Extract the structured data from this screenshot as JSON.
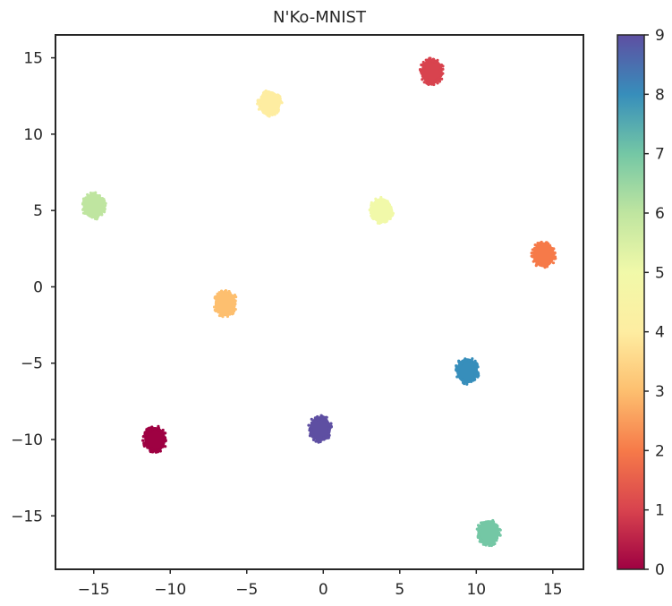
{
  "chart_data": {
    "type": "scatter",
    "title": "N'Ko-MNIST",
    "xlabel": "",
    "ylabel": "",
    "xlim": [
      -17.5,
      17
    ],
    "ylim": [
      -18.5,
      16.5
    ],
    "xticks": [
      -15,
      -10,
      -5,
      0,
      5,
      10,
      15
    ],
    "yticks": [
      -15,
      -10,
      -5,
      0,
      5,
      10,
      15
    ],
    "xtick_labels": [
      "−15",
      "−10",
      "−5",
      "0",
      "5",
      "10",
      "15"
    ],
    "ytick_labels": [
      "−15",
      "−10",
      "−5",
      "0",
      "5",
      "10",
      "15"
    ],
    "grid": false,
    "colormap": "Spectral",
    "colorbar": {
      "min": 0,
      "max": 9,
      "ticks": [
        0,
        1,
        2,
        3,
        4,
        5,
        6,
        7,
        8,
        9
      ],
      "tick_labels": [
        "0",
        "1",
        "2",
        "3",
        "4",
        "5",
        "6",
        "7",
        "8",
        "9"
      ]
    },
    "clusters": [
      {
        "label": 0,
        "x": -11.0,
        "y": -10.0,
        "color": "#9e0142"
      },
      {
        "label": 1,
        "x": 7.1,
        "y": 14.1,
        "color": "#d8434e"
      },
      {
        "label": 2,
        "x": 14.4,
        "y": 2.1,
        "color": "#f67a49"
      },
      {
        "label": 3,
        "x": -6.4,
        "y": -1.1,
        "color": "#fdbf6f"
      },
      {
        "label": 4,
        "x": -3.5,
        "y": 12.0,
        "color": "#feeda1"
      },
      {
        "label": 5,
        "x": 3.8,
        "y": 5.0,
        "color": "#f1f9a9"
      },
      {
        "label": 6,
        "x": -15.0,
        "y": 5.3,
        "color": "#bfe5a0"
      },
      {
        "label": 7,
        "x": 10.8,
        "y": -16.1,
        "color": "#74c7a5"
      },
      {
        "label": 8,
        "x": 9.4,
        "y": -5.5,
        "color": "#378ebb"
      },
      {
        "label": 9,
        "x": -0.2,
        "y": -9.3,
        "color": "#5e4fa2"
      }
    ]
  }
}
